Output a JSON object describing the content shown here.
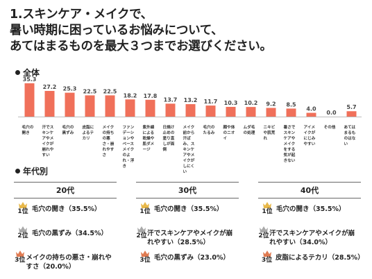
{
  "question": {
    "lines": [
      "1.スキンケア・メイクで、",
      "暑い時期に困っているお悩みについて、",
      "あてはまるものを最大３つまでお選びください。"
    ]
  },
  "overall": {
    "heading": "全体"
  },
  "by_age": {
    "heading": "年代別"
  },
  "colors": {
    "bar": "#f0705a",
    "gold": "#e8b84a",
    "silver": "#a9a9a9",
    "bronze": "#e07b52"
  },
  "chart_data": {
    "type": "bar",
    "categories": [
      "毛穴の開き",
      "汗でスキンケアやメイクが崩れやすい",
      "毛穴の黒ずみ",
      "皮脂によるテカリ",
      "メイクの持ちの悪さ・崩れやすさ",
      "ファンデーションやベースメイクのよれ・浮き",
      "紫外線による乾燥や肌ダメージ",
      "日焼け止めの塗り直しが面倒",
      "メイク前から汗ばみ、スキンケアやメイクがしにくい",
      "毛穴のたるみ",
      "顔や体のニオイ",
      "ムダ毛の処理",
      "ニキビや肌荒れ",
      "暑さでスキンケアやメイクをする気が起きない",
      "アイメイクがにじみやすい",
      "その他",
      "あてはまるものはない"
    ],
    "values": [
      "35.3",
      "27.2",
      "25.3",
      "22.5",
      "22.5",
      "18.2",
      "17.8",
      "13.7",
      "13.2",
      "11.7",
      "10.3",
      "10.2",
      "9.2",
      "8.5",
      "4.0",
      "0.0",
      "5.7"
    ],
    "ylim": [
      0,
      35.3
    ],
    "grid": false,
    "legend": "none"
  },
  "age_groups": [
    {
      "label": "20代",
      "ranks": [
        {
          "rank": "1位",
          "text": "毛穴の開き（35.5%）"
        },
        {
          "rank": "2位",
          "text": "毛穴の黒ずみ（34.5%）"
        },
        {
          "rank": "3位",
          "text": "メイクの持ちの悪さ・崩れやすさ（20.0%）"
        }
      ]
    },
    {
      "label": "30代",
      "ranks": [
        {
          "rank": "1位",
          "text": "毛穴の開き（35.5%）"
        },
        {
          "rank": "2位",
          "text": "汗でスキンケアやメイクが崩れやすい（28.5%）"
        },
        {
          "rank": "3位",
          "text": "毛穴の黒ずみ（23.0%）"
        }
      ]
    },
    {
      "label": "40代",
      "ranks": [
        {
          "rank": "1位",
          "text": "毛穴の開き（35.5%）"
        },
        {
          "rank": "2位",
          "text": "汗でスキンケアやメイクが崩れやすい（34.0%）"
        },
        {
          "rank": "3位",
          "text": "皮脂によるテカリ（28.5%）"
        }
      ]
    }
  ]
}
